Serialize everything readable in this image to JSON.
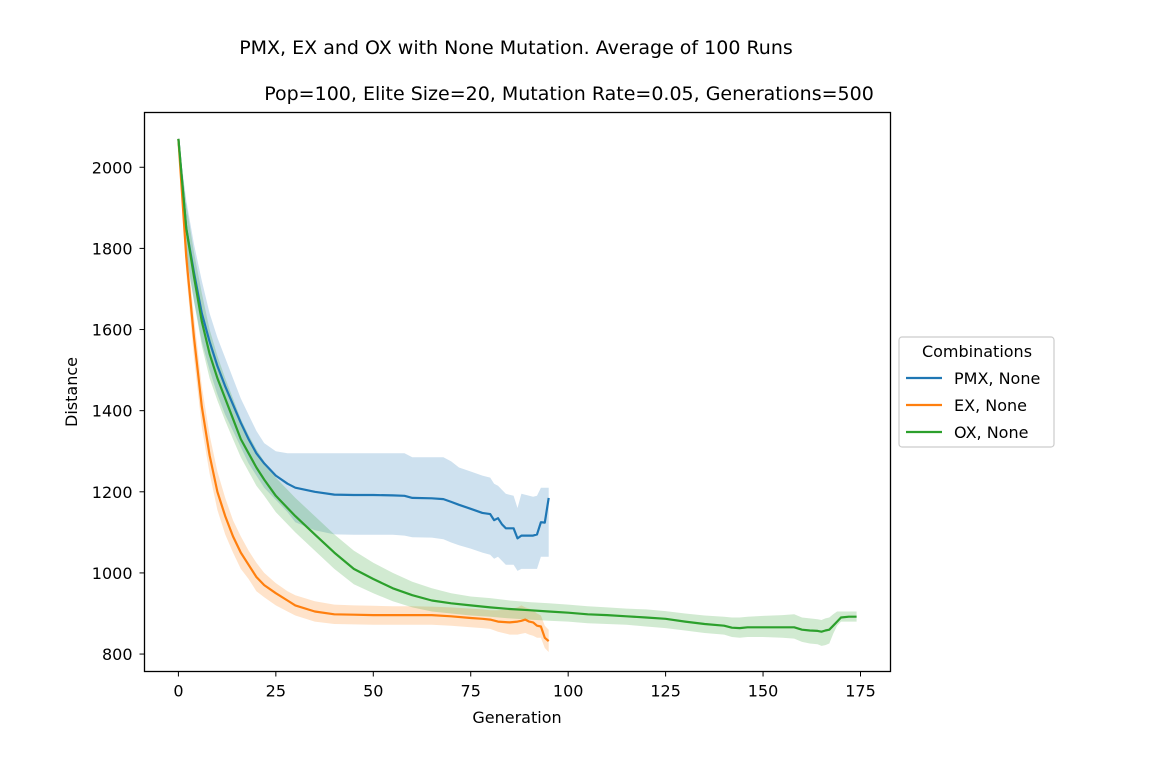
{
  "chart_data": {
    "type": "line",
    "title": "PMX, EX and OX with None Mutation. Average of 100 Runs",
    "subtitle": "Pop=100, Elite Size=20, Mutation Rate=0.05, Generations=500",
    "xlabel": "Generation",
    "ylabel": "Distance",
    "xlim": [
      -8.7,
      182.7
    ],
    "ylim": [
      757,
      2135
    ],
    "xticks": [
      0,
      25,
      50,
      75,
      100,
      125,
      150,
      175
    ],
    "yticks": [
      800,
      1000,
      1200,
      1400,
      1600,
      1800,
      2000
    ],
    "grid": false,
    "legend": {
      "title": "Combinations",
      "placement": "outside-right"
    },
    "series": [
      {
        "name": "PMX, None",
        "color": "#1f77b4",
        "x": [
          0,
          2,
          4,
          6,
          8,
          10,
          12,
          14,
          16,
          18,
          20,
          22,
          25,
          28,
          30,
          35,
          40,
          45,
          50,
          55,
          58,
          60,
          65,
          68,
          70,
          72,
          75,
          78,
          80,
          81,
          82,
          83,
          84,
          86,
          87,
          88,
          90,
          91,
          92,
          93,
          94,
          95
        ],
        "y": [
          2070,
          1850,
          1740,
          1640,
          1570,
          1510,
          1460,
          1415,
          1370,
          1330,
          1295,
          1270,
          1240,
          1220,
          1210,
          1200,
          1193,
          1192,
          1192,
          1191,
          1190,
          1185,
          1184,
          1182,
          1175,
          1168,
          1158,
          1148,
          1145,
          1130,
          1135,
          1120,
          1110,
          1110,
          1085,
          1092,
          1092,
          1092,
          1095,
          1125,
          1124,
          1185
        ],
        "band_upper": [
          2070,
          1920,
          1810,
          1720,
          1640,
          1580,
          1530,
          1480,
          1430,
          1390,
          1350,
          1320,
          1300,
          1295,
          1295,
          1295,
          1295,
          1295,
          1295,
          1295,
          1295,
          1285,
          1285,
          1285,
          1275,
          1260,
          1250,
          1240,
          1235,
          1220,
          1215,
          1205,
          1195,
          1190,
          1160,
          1195,
          1190,
          1188,
          1190,
          1210,
          1210,
          1210
        ],
        "band_lower": [
          2070,
          1780,
          1670,
          1570,
          1500,
          1440,
          1390,
          1350,
          1310,
          1270,
          1240,
          1210,
          1180,
          1150,
          1125,
          1105,
          1095,
          1094,
          1094,
          1094,
          1092,
          1088,
          1087,
          1083,
          1075,
          1068,
          1060,
          1050,
          1045,
          1035,
          1040,
          1030,
          1020,
          1020,
          1005,
          1010,
          1010,
          1010,
          1010,
          1040,
          1040,
          1040
        ]
      },
      {
        "name": "EX, None",
        "color": "#ff7f0e",
        "x": [
          0,
          2,
          4,
          6,
          8,
          10,
          12,
          14,
          16,
          18,
          20,
          22,
          25,
          28,
          30,
          35,
          40,
          45,
          50,
          55,
          60,
          65,
          70,
          75,
          78,
          80,
          82,
          85,
          87,
          88,
          89,
          90,
          91,
          92,
          93,
          94,
          95
        ],
        "y": [
          2070,
          1780,
          1580,
          1410,
          1290,
          1200,
          1140,
          1090,
          1050,
          1020,
          990,
          970,
          950,
          932,
          920,
          905,
          898,
          897,
          896,
          896,
          896,
          896,
          893,
          889,
          887,
          885,
          880,
          878,
          880,
          882,
          885,
          880,
          878,
          870,
          868,
          840,
          832
        ],
        "band_upper": [
          2070,
          1820,
          1630,
          1460,
          1340,
          1250,
          1185,
          1130,
          1090,
          1055,
          1025,
          1000,
          975,
          955,
          945,
          930,
          922,
          920,
          919,
          918,
          918,
          917,
          915,
          912,
          910,
          908,
          908,
          910,
          915,
          920,
          915,
          912,
          908,
          900,
          895,
          870,
          860
        ],
        "band_lower": [
          2070,
          1740,
          1530,
          1360,
          1245,
          1155,
          1095,
          1050,
          1010,
          985,
          955,
          940,
          920,
          905,
          895,
          880,
          874,
          873,
          872,
          872,
          872,
          872,
          870,
          866,
          864,
          862,
          855,
          848,
          848,
          850,
          852,
          848,
          845,
          840,
          840,
          815,
          805
        ]
      },
      {
        "name": "OX, None",
        "color": "#2ca02c",
        "x": [
          0,
          2,
          4,
          6,
          8,
          10,
          12,
          14,
          16,
          18,
          20,
          22,
          25,
          28,
          30,
          35,
          40,
          45,
          50,
          55,
          60,
          65,
          70,
          75,
          80,
          85,
          90,
          95,
          100,
          105,
          110,
          115,
          120,
          125,
          130,
          135,
          140,
          142,
          144,
          146,
          150,
          155,
          158,
          160,
          162,
          164,
          165,
          166,
          167,
          168,
          169,
          170,
          172,
          174
        ],
        "y": [
          2070,
          1850,
          1730,
          1620,
          1540,
          1480,
          1430,
          1380,
          1330,
          1295,
          1260,
          1230,
          1190,
          1160,
          1140,
          1095,
          1050,
          1010,
          985,
          962,
          945,
          932,
          925,
          920,
          915,
          911,
          908,
          905,
          902,
          898,
          896,
          893,
          890,
          887,
          880,
          874,
          870,
          865,
          864,
          866,
          866,
          866,
          866,
          860,
          858,
          857,
          855,
          858,
          860,
          870,
          880,
          890,
          892,
          892
        ],
        "band_upper": [
          2070,
          1910,
          1790,
          1690,
          1600,
          1535,
          1480,
          1430,
          1380,
          1340,
          1305,
          1275,
          1235,
          1205,
          1185,
          1140,
          1095,
          1055,
          1025,
          1000,
          978,
          962,
          950,
          942,
          938,
          932,
          928,
          925,
          922,
          918,
          915,
          912,
          910,
          906,
          900,
          895,
          892,
          890,
          890,
          892,
          894,
          896,
          898,
          890,
          888,
          886,
          884,
          888,
          890,
          898,
          905,
          905,
          905,
          905
        ],
        "band_lower": [
          2070,
          1790,
          1670,
          1560,
          1480,
          1425,
          1375,
          1330,
          1285,
          1250,
          1215,
          1190,
          1150,
          1120,
          1100,
          1055,
          1010,
          972,
          950,
          930,
          915,
          905,
          900,
          895,
          892,
          888,
          885,
          882,
          880,
          876,
          874,
          872,
          868,
          864,
          858,
          852,
          848,
          842,
          840,
          842,
          842,
          840,
          838,
          830,
          826,
          824,
          820,
          822,
          826,
          850,
          870,
          880,
          880,
          880
        ]
      }
    ]
  }
}
